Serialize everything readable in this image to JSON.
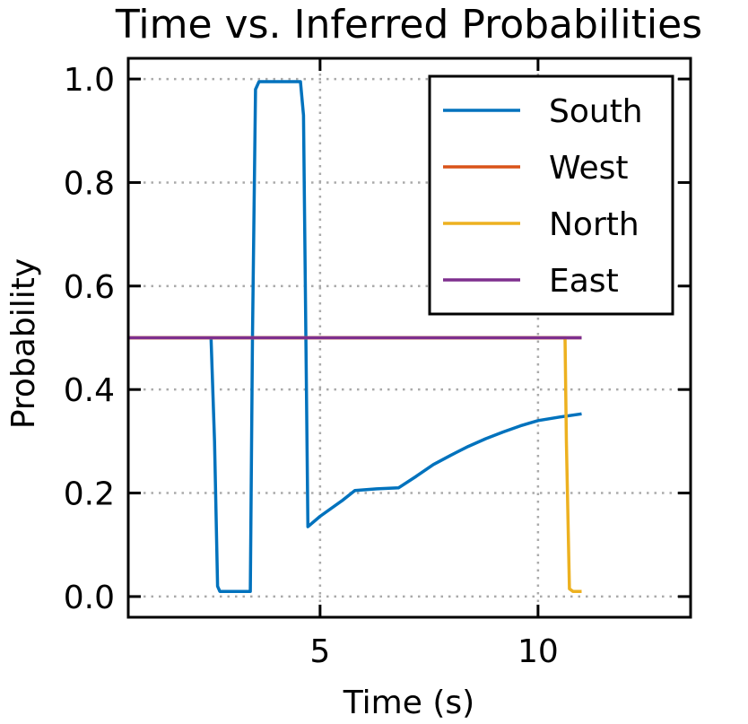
{
  "chart_data": {
    "type": "line",
    "title": "Time vs. Inferred Probabilities",
    "xlabel": "Time (s)",
    "ylabel": "Probability",
    "xlim": [
      0.6,
      13.5
    ],
    "ylim": [
      -0.04,
      1.04
    ],
    "xticks": [
      5,
      10
    ],
    "yticks": [
      0.0,
      0.2,
      0.4,
      0.6,
      0.8,
      1.0
    ],
    "xtick_labels": [
      "5",
      "10"
    ],
    "ytick_labels": [
      "0.0",
      "0.2",
      "0.4",
      "0.6",
      "0.8",
      "1.0"
    ],
    "grid": true,
    "legend_position": "top-right",
    "series": [
      {
        "name": "South",
        "color": "#0072BD",
        "x": [
          2.5,
          2.58,
          2.65,
          2.7,
          3.4,
          3.45,
          3.52,
          3.6,
          4.1,
          4.55,
          4.62,
          4.72,
          5.0,
          5.5,
          5.8,
          6.3,
          6.8,
          7.2,
          7.6,
          8.0,
          8.4,
          8.8,
          9.2,
          9.6,
          10.0,
          10.5,
          11.0
        ],
        "y": [
          0.5,
          0.3,
          0.02,
          0.01,
          0.01,
          0.5,
          0.98,
          0.995,
          0.995,
          0.995,
          0.93,
          0.135,
          0.155,
          0.185,
          0.205,
          0.208,
          0.21,
          0.232,
          0.255,
          0.273,
          0.29,
          0.305,
          0.318,
          0.33,
          0.34,
          0.347,
          0.353
        ]
      },
      {
        "name": "West",
        "color": "#D95319",
        "x": [
          0.6,
          11.0
        ],
        "y": [
          0.5,
          0.5
        ]
      },
      {
        "name": "North",
        "color": "#EDB120",
        "x": [
          0.6,
          10.62,
          10.65,
          10.72,
          10.8,
          11.0
        ],
        "y": [
          0.5,
          0.5,
          0.3,
          0.015,
          0.01,
          0.01
        ]
      },
      {
        "name": "East",
        "color": "#7E2F8E",
        "x": [
          0.6,
          11.0
        ],
        "y": [
          0.5,
          0.5
        ]
      }
    ]
  }
}
